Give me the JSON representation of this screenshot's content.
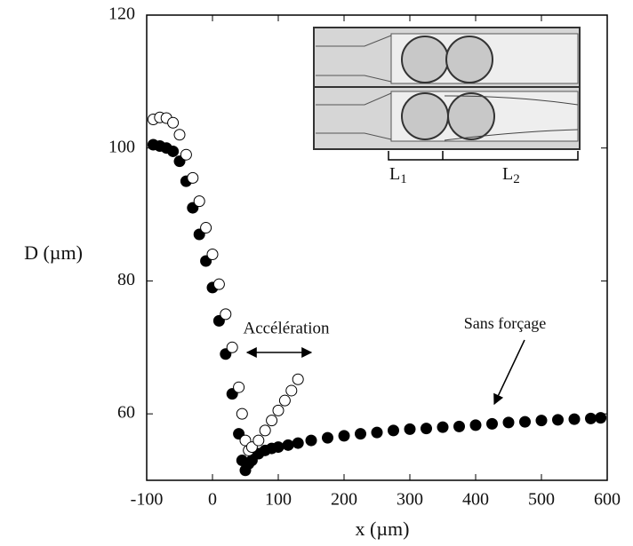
{
  "chart_data": {
    "type": "scatter",
    "xlabel": "x (µm)",
    "ylabel": "D (µm)",
    "xlim": [
      -100,
      600
    ],
    "ylim": [
      50,
      120
    ],
    "xticks": [
      -100,
      0,
      100,
      200,
      300,
      400,
      500,
      600
    ],
    "yticks": [
      60,
      80,
      100,
      120
    ],
    "annotations": [
      "Accélération",
      "Sans forçage"
    ],
    "inset_labels": [
      {
        "main": "L",
        "sub": "1"
      },
      {
        "main": "L",
        "sub": "2"
      }
    ],
    "series": [
      {
        "color": "#000000",
        "fill": "#000000",
        "x": [
          -90,
          -80,
          -70,
          -60,
          -50,
          -40,
          -30,
          -20,
          -10,
          0,
          10,
          20,
          30,
          40,
          45,
          50,
          55,
          60,
          70,
          80,
          90,
          100,
          115,
          130,
          150,
          175,
          200,
          225,
          250,
          275,
          300,
          325,
          350,
          375,
          400,
          425,
          450,
          475,
          500,
          525,
          550,
          575,
          590
        ],
        "values": [
          100.5,
          100.3,
          100,
          99.5,
          98,
          95,
          91,
          87,
          83,
          79,
          74,
          69,
          63,
          57,
          53,
          51.5,
          52.5,
          53,
          54,
          54.5,
          54.8,
          55,
          55.3,
          55.6,
          56,
          56.4,
          56.7,
          57,
          57.2,
          57.5,
          57.7,
          57.8,
          58,
          58.1,
          58.3,
          58.5,
          58.7,
          58.8,
          59,
          59.1,
          59.2,
          59.3,
          59.4
        ]
      },
      {
        "color": "#000000",
        "fill": "#ffffff",
        "x": [
          -90,
          -80,
          -70,
          -60,
          -50,
          -40,
          -30,
          -20,
          -10,
          0,
          10,
          20,
          30,
          40,
          45,
          50,
          55,
          60,
          70,
          80,
          90,
          100,
          110,
          120,
          130
        ],
        "values": [
          104.3,
          104.6,
          104.5,
          103.8,
          102,
          99,
          95.5,
          92,
          88,
          84,
          79.5,
          75,
          70,
          64,
          60,
          56,
          54.5,
          55,
          56,
          57.5,
          59,
          60.5,
          62,
          63.5,
          65.2
        ]
      }
    ]
  }
}
